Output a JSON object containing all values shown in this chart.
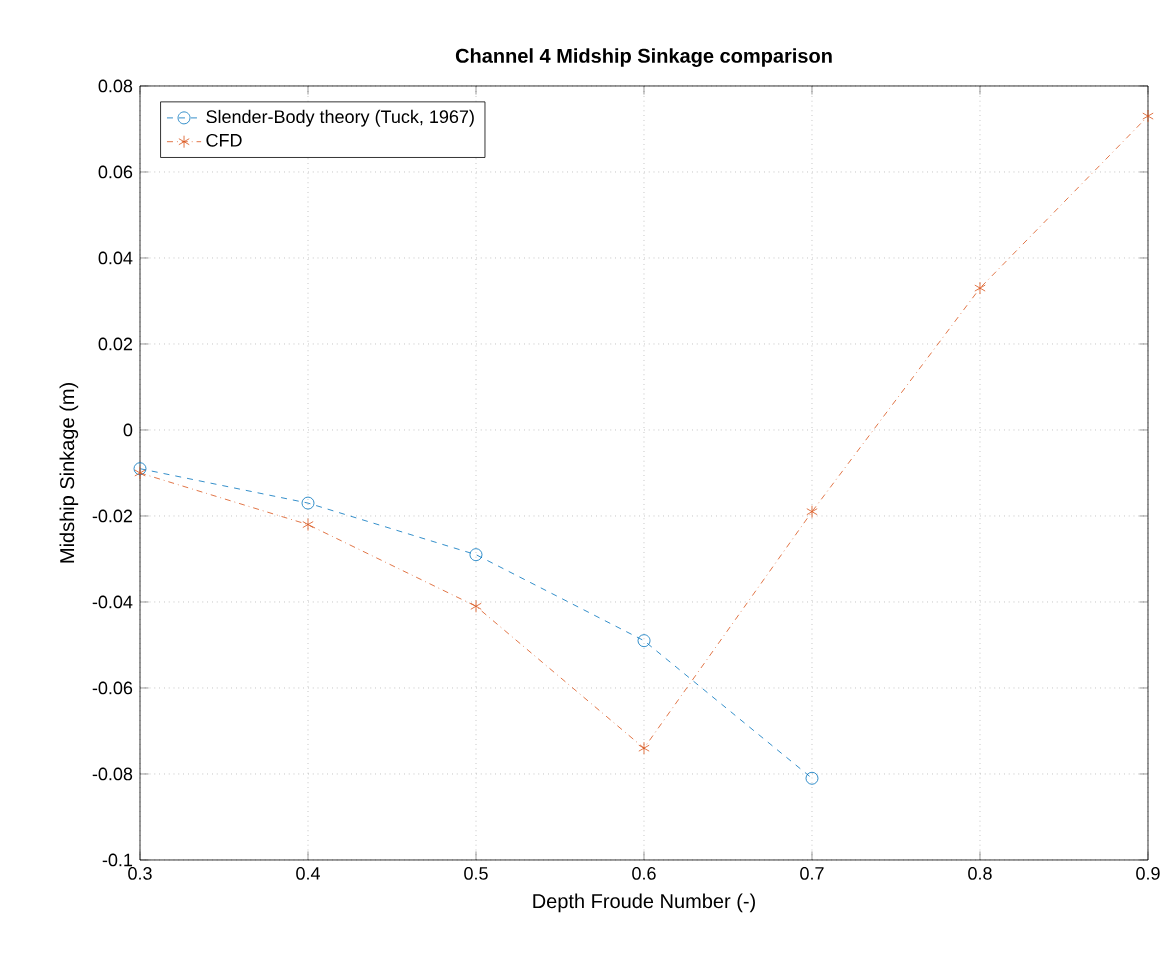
{
  "chart_data": {
    "type": "line",
    "title": "Channel 4 Midship Sinkage comparison",
    "xlabel": "Depth Froude Number (-)",
    "ylabel": "Midship Sinkage (m)",
    "series": [
      {
        "name": "Slender-Body theory (Tuck, 1967)",
        "color": "#0072bd",
        "marker": "circle",
        "line_style": "dashed",
        "x": [
          0.3,
          0.4,
          0.5,
          0.6,
          0.7
        ],
        "values": [
          -0.009,
          -0.017,
          -0.029,
          -0.049,
          -0.081
        ]
      },
      {
        "name": "CFD",
        "color": "#d95319",
        "marker": "cross",
        "line_style": "dashdot",
        "x": [
          0.3,
          0.4,
          0.5,
          0.6,
          0.7,
          0.8,
          0.9
        ],
        "values": [
          -0.01,
          -0.022,
          -0.041,
          -0.074,
          -0.019,
          0.033,
          0.073
        ]
      }
    ],
    "xlim": [
      0.3,
      0.9
    ],
    "ylim": [
      -0.1,
      0.08
    ],
    "xticks": [
      0.3,
      0.4,
      0.5,
      0.6,
      0.7,
      0.8,
      0.9
    ],
    "yticks": [
      -0.1,
      -0.08,
      -0.06,
      -0.04,
      -0.02,
      0,
      0.02,
      0.04,
      0.06,
      0.08
    ],
    "grid": true,
    "legend": "top left"
  }
}
